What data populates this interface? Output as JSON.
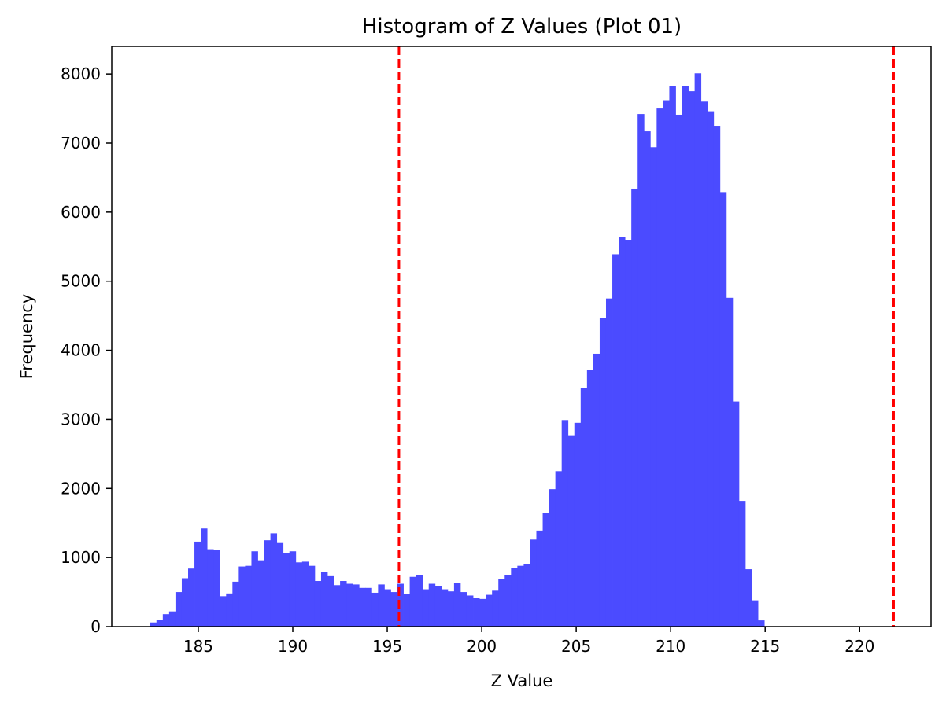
{
  "chart_data": {
    "type": "bar",
    "subtype": "histogram",
    "title": "Histogram of Z Values (Plot 01)",
    "xlabel": "Z Value",
    "ylabel": "Frequency",
    "xlim": [
      180.42,
      223.78
    ],
    "ylim": [
      0,
      8400
    ],
    "xticks": [
      185,
      190,
      195,
      200,
      205,
      210,
      215,
      220
    ],
    "yticks": [
      0,
      1000,
      2000,
      3000,
      4000,
      5000,
      6000,
      7000,
      8000
    ],
    "grid": false,
    "bar_color": "#4b4bff",
    "bin_width": 0.3351,
    "bin_start": 182.45,
    "counts": [
      60,
      100,
      180,
      220,
      500,
      700,
      840,
      1230,
      1420,
      1120,
      1110,
      440,
      480,
      650,
      870,
      880,
      1090,
      960,
      1250,
      1350,
      1210,
      1070,
      1090,
      930,
      940,
      880,
      660,
      790,
      730,
      600,
      660,
      620,
      610,
      560,
      560,
      490,
      610,
      540,
      500,
      620,
      470,
      720,
      740,
      540,
      620,
      590,
      540,
      510,
      630,
      500,
      450,
      420,
      400,
      460,
      520,
      690,
      750,
      850,
      880,
      910,
      1260,
      1390,
      1640,
      1990,
      2250,
      2990,
      2770,
      2950,
      3450,
      3720,
      3950,
      4470,
      4750,
      5390,
      5640,
      5600,
      6340,
      7420,
      7170,
      6940,
      7500,
      7620,
      7820,
      7410,
      7830,
      7750,
      8010,
      7600,
      7460,
      7250,
      6290,
      4760,
      3260,
      1820,
      830,
      380,
      90
    ],
    "reference_lines": [
      {
        "x": 195.62,
        "color": "#ff0000",
        "style": "dashed"
      },
      {
        "x": 221.8,
        "color": "#ff0000",
        "style": "dashed"
      }
    ]
  }
}
